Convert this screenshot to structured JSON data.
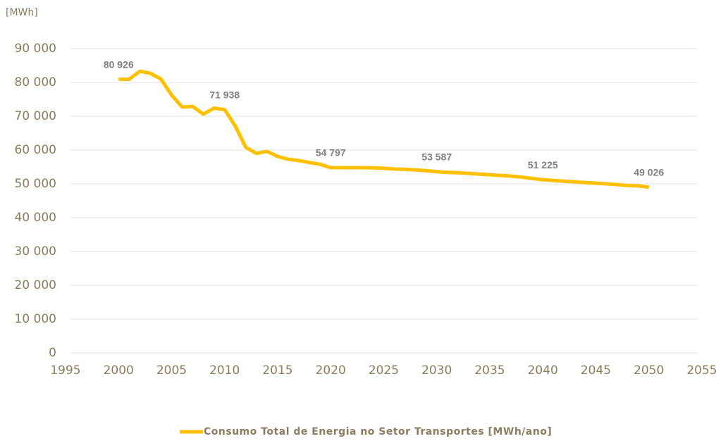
{
  "chart_data": {
    "type": "line",
    "y_unit_label": "[MWh]",
    "x": [
      2000,
      2001,
      2002,
      2003,
      2004,
      2005,
      2006,
      2007,
      2008,
      2009,
      2010,
      2011,
      2012,
      2013,
      2014,
      2015,
      2016,
      2017,
      2018,
      2019,
      2020,
      2021,
      2022,
      2023,
      2024,
      2025,
      2026,
      2027,
      2028,
      2029,
      2030,
      2031,
      2032,
      2033,
      2034,
      2035,
      2036,
      2037,
      2038,
      2039,
      2040,
      2041,
      2042,
      2043,
      2044,
      2045,
      2046,
      2047,
      2048,
      2049,
      2050
    ],
    "series": [
      {
        "name": "Consumo Total de Energia no Setor Transportes [MWh/ano]",
        "color": "#FFC000",
        "values": [
          80926,
          80950,
          83300,
          82700,
          81000,
          76250,
          72700,
          72900,
          70600,
          72400,
          71938,
          67100,
          60800,
          59000,
          59600,
          58100,
          57300,
          56900,
          56300,
          55800,
          54797,
          54800,
          54800,
          54800,
          54750,
          54600,
          54400,
          54300,
          54100,
          53900,
          53587,
          53400,
          53300,
          53100,
          52900,
          52700,
          52500,
          52300,
          52000,
          51600,
          51225,
          51000,
          50800,
          50600,
          50400,
          50200,
          50000,
          49800,
          49500,
          49400,
          49026
        ],
        "value_labels": [
          "80 926",
          null,
          null,
          null,
          null,
          null,
          null,
          null,
          null,
          null,
          "71 938",
          null,
          null,
          null,
          null,
          null,
          null,
          null,
          null,
          null,
          "54 797",
          null,
          null,
          null,
          null,
          null,
          null,
          null,
          null,
          null,
          "53 587",
          null,
          null,
          null,
          null,
          null,
          null,
          null,
          null,
          null,
          "51 225",
          null,
          null,
          null,
          null,
          null,
          null,
          null,
          null,
          null,
          "49 026"
        ]
      }
    ],
    "xlim": [
      1995,
      2055
    ],
    "xticks": [
      1995,
      2000,
      2005,
      2010,
      2015,
      2020,
      2025,
      2030,
      2035,
      2040,
      2045,
      2050,
      2055
    ],
    "ylim": [
      0,
      90000
    ],
    "yticks": [
      0,
      {
        "value": 10000,
        "label": "10 000"
      },
      {
        "value": 20000,
        "label": "20 000"
      },
      {
        "value": 30000,
        "label": "30 000"
      },
      {
        "value": 40000,
        "label": "40 000"
      },
      {
        "value": 50000,
        "label": "50 000"
      },
      {
        "value": 60000,
        "label": "60 000"
      },
      {
        "value": 70000,
        "label": "70 000"
      },
      {
        "value": 80000,
        "label": "80 000"
      },
      {
        "value": 90000,
        "label": "90 000"
      }
    ],
    "grid": true,
    "legend": "bottom"
  }
}
